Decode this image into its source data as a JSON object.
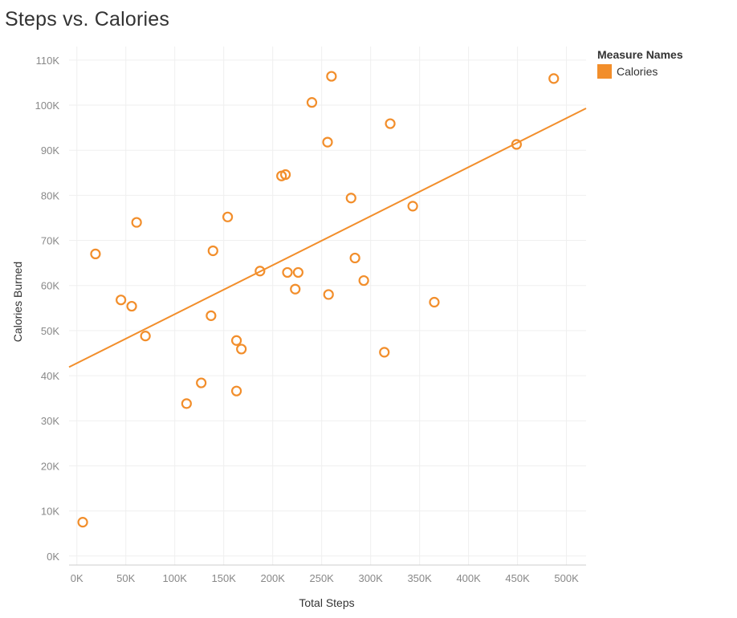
{
  "title": "Steps vs. Calories",
  "legend": {
    "title": "Measure Names",
    "items": [
      {
        "label": "Calories",
        "color": "#f28e2b"
      }
    ]
  },
  "chart_data": {
    "type": "scatter",
    "title": "Steps vs. Calories",
    "xlabel": "Total Steps",
    "ylabel": "Calories Burned",
    "xlim": [
      -8000,
      520000
    ],
    "ylim": [
      -2000,
      113000
    ],
    "xticks": [
      0,
      50000,
      100000,
      150000,
      200000,
      250000,
      300000,
      350000,
      400000,
      450000,
      500000
    ],
    "xtick_labels": [
      "0K",
      "50K",
      "100K",
      "150K",
      "200K",
      "250K",
      "300K",
      "350K",
      "400K",
      "450K",
      "500K"
    ],
    "yticks": [
      0,
      10000,
      20000,
      30000,
      40000,
      50000,
      60000,
      70000,
      80000,
      90000,
      100000,
      110000
    ],
    "ytick_labels": [
      "0K",
      "10K",
      "20K",
      "30K",
      "40K",
      "50K",
      "60K",
      "70K",
      "80K",
      "90K",
      "100K",
      "110K"
    ],
    "grid": true,
    "legend_position": "top-right",
    "series": [
      {
        "name": "Calories",
        "color": "#f28e2b",
        "points": [
          {
            "x": 6000,
            "y": 7500
          },
          {
            "x": 19000,
            "y": 67000
          },
          {
            "x": 45000,
            "y": 56800
          },
          {
            "x": 56000,
            "y": 55400
          },
          {
            "x": 61000,
            "y": 74000
          },
          {
            "x": 70000,
            "y": 48800
          },
          {
            "x": 112000,
            "y": 33800
          },
          {
            "x": 127000,
            "y": 38400
          },
          {
            "x": 137000,
            "y": 53300
          },
          {
            "x": 139000,
            "y": 67700
          },
          {
            "x": 154000,
            "y": 75200
          },
          {
            "x": 163000,
            "y": 36600
          },
          {
            "x": 163000,
            "y": 47800
          },
          {
            "x": 168000,
            "y": 45900
          },
          {
            "x": 187000,
            "y": 63200
          },
          {
            "x": 209000,
            "y": 84300
          },
          {
            "x": 213000,
            "y": 84600
          },
          {
            "x": 215000,
            "y": 62900
          },
          {
            "x": 223000,
            "y": 59200
          },
          {
            "x": 226000,
            "y": 62900
          },
          {
            "x": 240000,
            "y": 100600
          },
          {
            "x": 256000,
            "y": 91800
          },
          {
            "x": 257000,
            "y": 58000
          },
          {
            "x": 260000,
            "y": 106400
          },
          {
            "x": 280000,
            "y": 79400
          },
          {
            "x": 284000,
            "y": 66100
          },
          {
            "x": 293000,
            "y": 61100
          },
          {
            "x": 314000,
            "y": 45200
          },
          {
            "x": 320000,
            "y": 95900
          },
          {
            "x": 343000,
            "y": 77600
          },
          {
            "x": 365000,
            "y": 56300
          },
          {
            "x": 449000,
            "y": 91300
          },
          {
            "x": 487000,
            "y": 105900
          }
        ]
      }
    ],
    "trend_line": {
      "x": [
        -8000,
        520000
      ],
      "y": [
        41900,
        99300
      ]
    }
  }
}
